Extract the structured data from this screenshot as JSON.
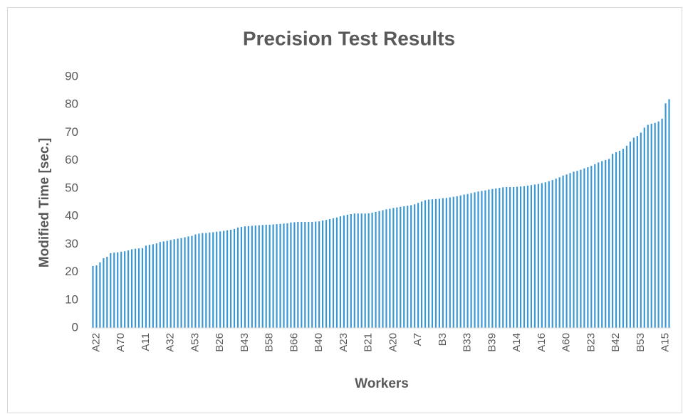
{
  "chart_data": {
    "type": "bar",
    "title": "Precision Test Results",
    "x_label": "Workers",
    "y_label": "Modified Time [sec.]",
    "color": "#3a97d4",
    "categories": [
      null,
      "A22",
      null,
      null,
      null,
      null,
      null,
      null,
      "A70",
      null,
      null,
      null,
      null,
      null,
      null,
      "A11",
      null,
      null,
      null,
      null,
      null,
      null,
      "A32",
      null,
      null,
      null,
      null,
      null,
      null,
      "A53",
      null,
      null,
      null,
      null,
      null,
      null,
      "B26",
      null,
      null,
      null,
      null,
      null,
      null,
      "B43",
      null,
      null,
      null,
      null,
      null,
      null,
      "B58",
      null,
      null,
      null,
      null,
      null,
      null,
      "B66",
      null,
      null,
      null,
      null,
      null,
      null,
      "B40",
      null,
      null,
      null,
      null,
      null,
      null,
      "A23",
      null,
      null,
      null,
      null,
      null,
      null,
      "B21",
      null,
      null,
      null,
      null,
      null,
      null,
      "A20",
      null,
      null,
      null,
      null,
      null,
      null,
      "A7",
      null,
      null,
      null,
      null,
      null,
      null,
      "B3",
      null,
      null,
      null,
      null,
      null,
      null,
      "B33",
      null,
      null,
      null,
      null,
      null,
      null,
      "B39",
      null,
      null,
      null,
      null,
      null,
      null,
      "A14",
      null,
      null,
      null,
      null,
      null,
      null,
      "A16",
      null,
      null,
      null,
      null,
      null,
      null,
      "A60",
      null,
      null,
      null,
      null,
      null,
      null,
      "B23",
      null,
      null,
      null,
      null,
      null,
      null,
      "B42",
      null,
      null,
      null,
      null,
      null,
      null,
      "B53",
      null,
      null,
      null,
      null,
      null,
      null,
      "A15",
      null
    ],
    "values": [
      22.2,
      22.4,
      23.5,
      25,
      25.5,
      26.8,
      27,
      27.1,
      27.3,
      27.5,
      27.8,
      28.2,
      28.4,
      28.5,
      28.6,
      29.5,
      29.8,
      30,
      30.3,
      30.8,
      31,
      31.2,
      31.5,
      31.8,
      32,
      32.2,
      32.5,
      32.8,
      33,
      33.5,
      33.8,
      34,
      34,
      34.2,
      34.3,
      34.5,
      34.6,
      34.8,
      35,
      35.2,
      35.5,
      36,
      36.2,
      36.4,
      36.5,
      36.6,
      36.7,
      36.8,
      36.9,
      37,
      37,
      37.1,
      37.2,
      37.3,
      37.4,
      37.5,
      37.8,
      37.9,
      38,
      38,
      38,
      38,
      38,
      38.1,
      38.2,
      38.5,
      38.7,
      39,
      39.3,
      39.6,
      40,
      40.3,
      40.6,
      40.8,
      41,
      41,
      41,
      41,
      41.1,
      41.3,
      41.6,
      41.9,
      42.2,
      42.5,
      42.7,
      43,
      43.2,
      43.4,
      43.6,
      43.8,
      44,
      44.3,
      44.8,
      45.3,
      45.8,
      46,
      46.1,
      46.2,
      46.3,
      46.5,
      46.6,
      46.8,
      47,
      47.2,
      47.5,
      47.8,
      48,
      48.3,
      48.6,
      48.9,
      49.1,
      49.3,
      49.6,
      49.8,
      50,
      50.2,
      50.4,
      50.5,
      50.5,
      50.5,
      50.6,
      50.7,
      50.8,
      51,
      51.2,
      51.4,
      51.6,
      51.9,
      52.2,
      52.6,
      53,
      53.5,
      54,
      54.6,
      55,
      55.5,
      56,
      56.3,
      56.7,
      57.2,
      57.6,
      58.1,
      58.7,
      59.3,
      59.8,
      60.2,
      60.6,
      62.4,
      63,
      63.5,
      64.2,
      65.3,
      66.8,
      68.2,
      68.8,
      70,
      71.8,
      72.8,
      73.2,
      73.5,
      74,
      75,
      80.5,
      82
    ],
    "ylim": [
      0,
      90
    ],
    "yticks": [
      0,
      10,
      20,
      30,
      40,
      50,
      60,
      70,
      80,
      90
    ],
    "grid": false
  }
}
